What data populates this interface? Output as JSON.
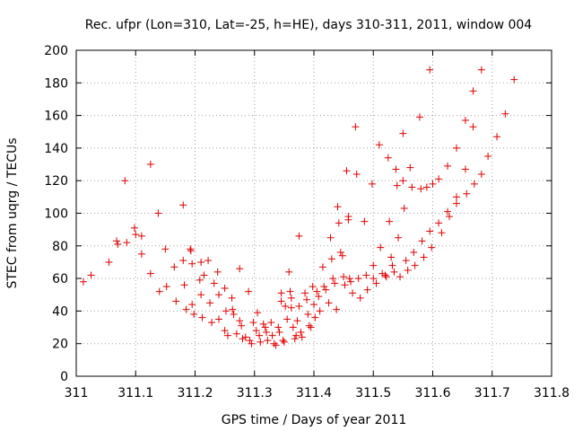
{
  "chart_data": {
    "type": "scatter",
    "title": "Rec. ufpr (Lon=310, Lat=-25, h=HE), days 310-311, 2011, window 004",
    "xlabel": "GPS time / Days of year 2011",
    "ylabel": "STEC from uqrg / TECUs",
    "xlim": [
      311,
      311.8
    ],
    "ylim": [
      0,
      200
    ],
    "x_ticks": [
      "311",
      "311.1",
      "311.2",
      "311.3",
      "311.4",
      "311.5",
      "311.6",
      "311.7",
      "311.8"
    ],
    "y_ticks": [
      "0",
      "20",
      "40",
      "60",
      "80",
      "100",
      "120",
      "140",
      "160",
      "180",
      "200"
    ],
    "grid": true,
    "marker": "plus",
    "color": "#e00000",
    "points": [
      [
        311.012,
        58
      ],
      [
        311.025,
        62
      ],
      [
        311.055,
        70
      ],
      [
        311.068,
        83
      ],
      [
        311.07,
        81
      ],
      [
        311.082,
        120
      ],
      [
        311.085,
        82
      ],
      [
        311.098,
        91
      ],
      [
        311.1,
        87
      ],
      [
        311.11,
        86
      ],
      [
        311.11,
        75
      ],
      [
        311.125,
        130
      ],
      [
        311.125,
        63
      ],
      [
        311.138,
        100
      ],
      [
        311.14,
        52
      ],
      [
        311.15,
        78
      ],
      [
        311.152,
        55
      ],
      [
        311.165,
        67
      ],
      [
        311.168,
        46
      ],
      [
        311.18,
        105
      ],
      [
        311.18,
        71
      ],
      [
        311.182,
        56
      ],
      [
        311.185,
        41
      ],
      [
        311.192,
        78
      ],
      [
        311.193,
        77
      ],
      [
        311.195,
        69
      ],
      [
        311.195,
        44
      ],
      [
        311.198,
        38
      ],
      [
        311.208,
        59
      ],
      [
        311.21,
        70
      ],
      [
        311.21,
        50
      ],
      [
        311.212,
        36
      ],
      [
        311.215,
        62
      ],
      [
        311.222,
        71
      ],
      [
        311.225,
        45
      ],
      [
        311.228,
        33
      ],
      [
        311.232,
        57
      ],
      [
        311.238,
        64
      ],
      [
        311.24,
        50
      ],
      [
        311.24,
        35
      ],
      [
        311.25,
        54
      ],
      [
        311.25,
        28
      ],
      [
        311.252,
        40
      ],
      [
        311.255,
        25
      ],
      [
        311.262,
        48
      ],
      [
        311.263,
        41
      ],
      [
        311.265,
        38
      ],
      [
        311.27,
        26
      ],
      [
        311.275,
        66
      ],
      [
        311.275,
        34
      ],
      [
        311.278,
        31
      ],
      [
        311.28,
        23
      ],
      [
        311.285,
        24
      ],
      [
        311.29,
        52
      ],
      [
        311.292,
        22
      ],
      [
        311.295,
        20
      ],
      [
        311.298,
        33
      ],
      [
        311.303,
        28
      ],
      [
        311.305,
        39
      ],
      [
        311.308,
        25
      ],
      [
        311.31,
        21
      ],
      [
        311.315,
        32
      ],
      [
        311.318,
        30
      ],
      [
        311.32,
        27
      ],
      [
        311.322,
        22
      ],
      [
        311.328,
        33
      ],
      [
        311.33,
        25
      ],
      [
        311.333,
        20
      ],
      [
        311.336,
        19
      ],
      [
        311.34,
        30
      ],
      [
        311.342,
        27
      ],
      [
        311.345,
        51
      ],
      [
        311.345,
        46
      ],
      [
        311.348,
        22
      ],
      [
        311.35,
        21
      ],
      [
        311.352,
        43
      ],
      [
        311.355,
        35
      ],
      [
        311.358,
        64
      ],
      [
        311.36,
        52
      ],
      [
        311.362,
        48
      ],
      [
        311.362,
        42
      ],
      [
        311.365,
        30
      ],
      [
        311.368,
        23
      ],
      [
        311.37,
        25
      ],
      [
        311.372,
        34
      ],
      [
        311.375,
        86
      ],
      [
        311.375,
        43
      ],
      [
        311.378,
        27
      ],
      [
        311.38,
        24
      ],
      [
        311.385,
        51
      ],
      [
        311.388,
        47
      ],
      [
        311.39,
        38
      ],
      [
        311.392,
        31
      ],
      [
        311.395,
        30
      ],
      [
        311.398,
        55
      ],
      [
        311.4,
        44
      ],
      [
        311.402,
        36
      ],
      [
        311.405,
        52
      ],
      [
        311.408,
        49
      ],
      [
        311.41,
        40
      ],
      [
        311.415,
        67
      ],
      [
        311.417,
        55
      ],
      [
        311.42,
        53
      ],
      [
        311.425,
        45
      ],
      [
        311.428,
        85
      ],
      [
        311.43,
        72
      ],
      [
        311.432,
        60
      ],
      [
        311.435,
        57
      ],
      [
        311.438,
        41
      ],
      [
        311.44,
        104
      ],
      [
        311.442,
        94
      ],
      [
        311.445,
        76
      ],
      [
        311.448,
        74
      ],
      [
        311.45,
        61
      ],
      [
        311.452,
        56
      ],
      [
        311.455,
        126
      ],
      [
        311.458,
        98
      ],
      [
        311.458,
        96
      ],
      [
        311.46,
        60
      ],
      [
        311.462,
        58
      ],
      [
        311.465,
        51
      ],
      [
        311.47,
        153
      ],
      [
        311.472,
        124
      ],
      [
        311.475,
        60
      ],
      [
        311.478,
        48
      ],
      [
        311.485,
        95
      ],
      [
        311.488,
        62
      ],
      [
        311.49,
        53
      ],
      [
        311.498,
        118
      ],
      [
        311.5,
        68
      ],
      [
        311.5,
        60
      ],
      [
        311.505,
        57
      ],
      [
        311.51,
        142
      ],
      [
        311.512,
        79
      ],
      [
        311.515,
        63
      ],
      [
        311.52,
        62
      ],
      [
        311.522,
        61
      ],
      [
        311.525,
        134
      ],
      [
        311.527,
        95
      ],
      [
        311.53,
        73
      ],
      [
        311.532,
        68
      ],
      [
        311.535,
        64
      ],
      [
        311.538,
        127
      ],
      [
        311.54,
        117
      ],
      [
        311.542,
        85
      ],
      [
        311.545,
        61
      ],
      [
        311.55,
        149
      ],
      [
        311.55,
        120
      ],
      [
        311.552,
        103
      ],
      [
        311.555,
        71
      ],
      [
        311.558,
        65
      ],
      [
        311.562,
        128
      ],
      [
        311.565,
        116
      ],
      [
        311.568,
        76
      ],
      [
        311.57,
        68
      ],
      [
        311.578,
        159
      ],
      [
        311.58,
        115
      ],
      [
        311.582,
        83
      ],
      [
        311.585,
        73
      ],
      [
        311.59,
        116
      ],
      [
        311.595,
        188
      ],
      [
        311.595,
        89
      ],
      [
        311.598,
        79
      ],
      [
        311.6,
        118
      ],
      [
        311.61,
        121
      ],
      [
        311.61,
        94
      ],
      [
        311.615,
        88
      ],
      [
        311.625,
        129
      ],
      [
        311.625,
        101
      ],
      [
        311.628,
        98
      ],
      [
        311.64,
        140
      ],
      [
        311.64,
        110
      ],
      [
        311.64,
        106
      ],
      [
        311.655,
        157
      ],
      [
        311.655,
        127
      ],
      [
        311.657,
        112
      ],
      [
        311.668,
        175
      ],
      [
        311.668,
        153
      ],
      [
        311.67,
        118
      ],
      [
        311.682,
        188
      ],
      [
        311.682,
        124
      ],
      [
        311.693,
        135
      ],
      [
        311.708,
        147
      ],
      [
        311.722,
        161
      ],
      [
        311.737,
        182
      ]
    ]
  }
}
